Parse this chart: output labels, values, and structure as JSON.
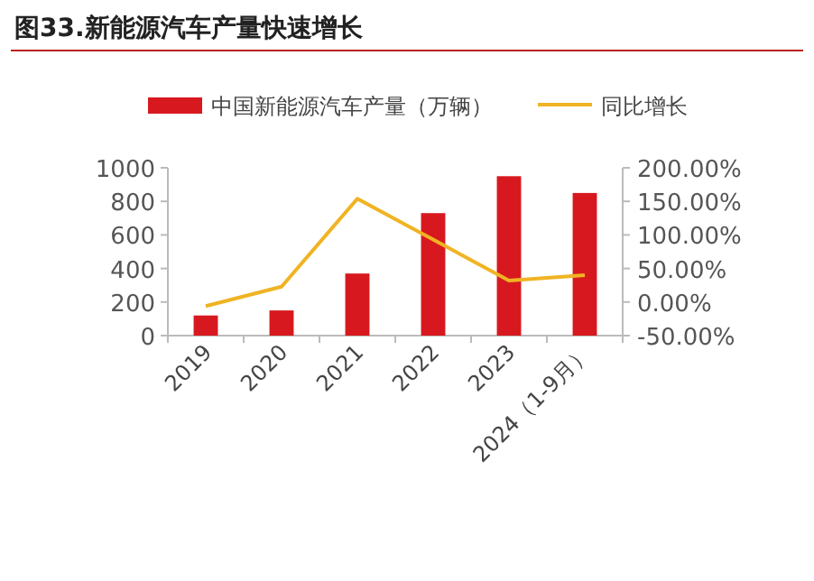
{
  "chart_data": {
    "type": "bar",
    "title": "图33.新能源汽车产量快速增长",
    "categories": [
      "2019",
      "2020",
      "2021",
      "2022",
      "2023",
      "2024（1-9月）"
    ],
    "series": [
      {
        "name": "中国新能源汽车产量（万辆）",
        "color": "#d7191f",
        "values": [
          120,
          150,
          370,
          730,
          950,
          850
        ]
      },
      {
        "name": "同比增长",
        "type": "line",
        "axis": "y2",
        "color": "#f0b323",
        "values": [
          -6,
          23,
          154,
          93,
          32,
          40
        ]
      }
    ],
    "ylim": [
      0,
      1000
    ],
    "yticks": [
      0,
      200,
      400,
      600,
      800,
      1000
    ],
    "y2lim": [
      -50,
      200
    ],
    "y2ticks": [
      {
        "value": -50,
        "label": "-50.00%"
      },
      {
        "value": 0,
        "label": "0.00%"
      },
      {
        "value": 50,
        "label": "50.00%"
      },
      {
        "value": 100,
        "label": "100.00%"
      },
      {
        "value": 150,
        "label": "150.00%"
      },
      {
        "value": 200,
        "label": "200.00%"
      }
    ],
    "legend": "top",
    "grid": false
  }
}
